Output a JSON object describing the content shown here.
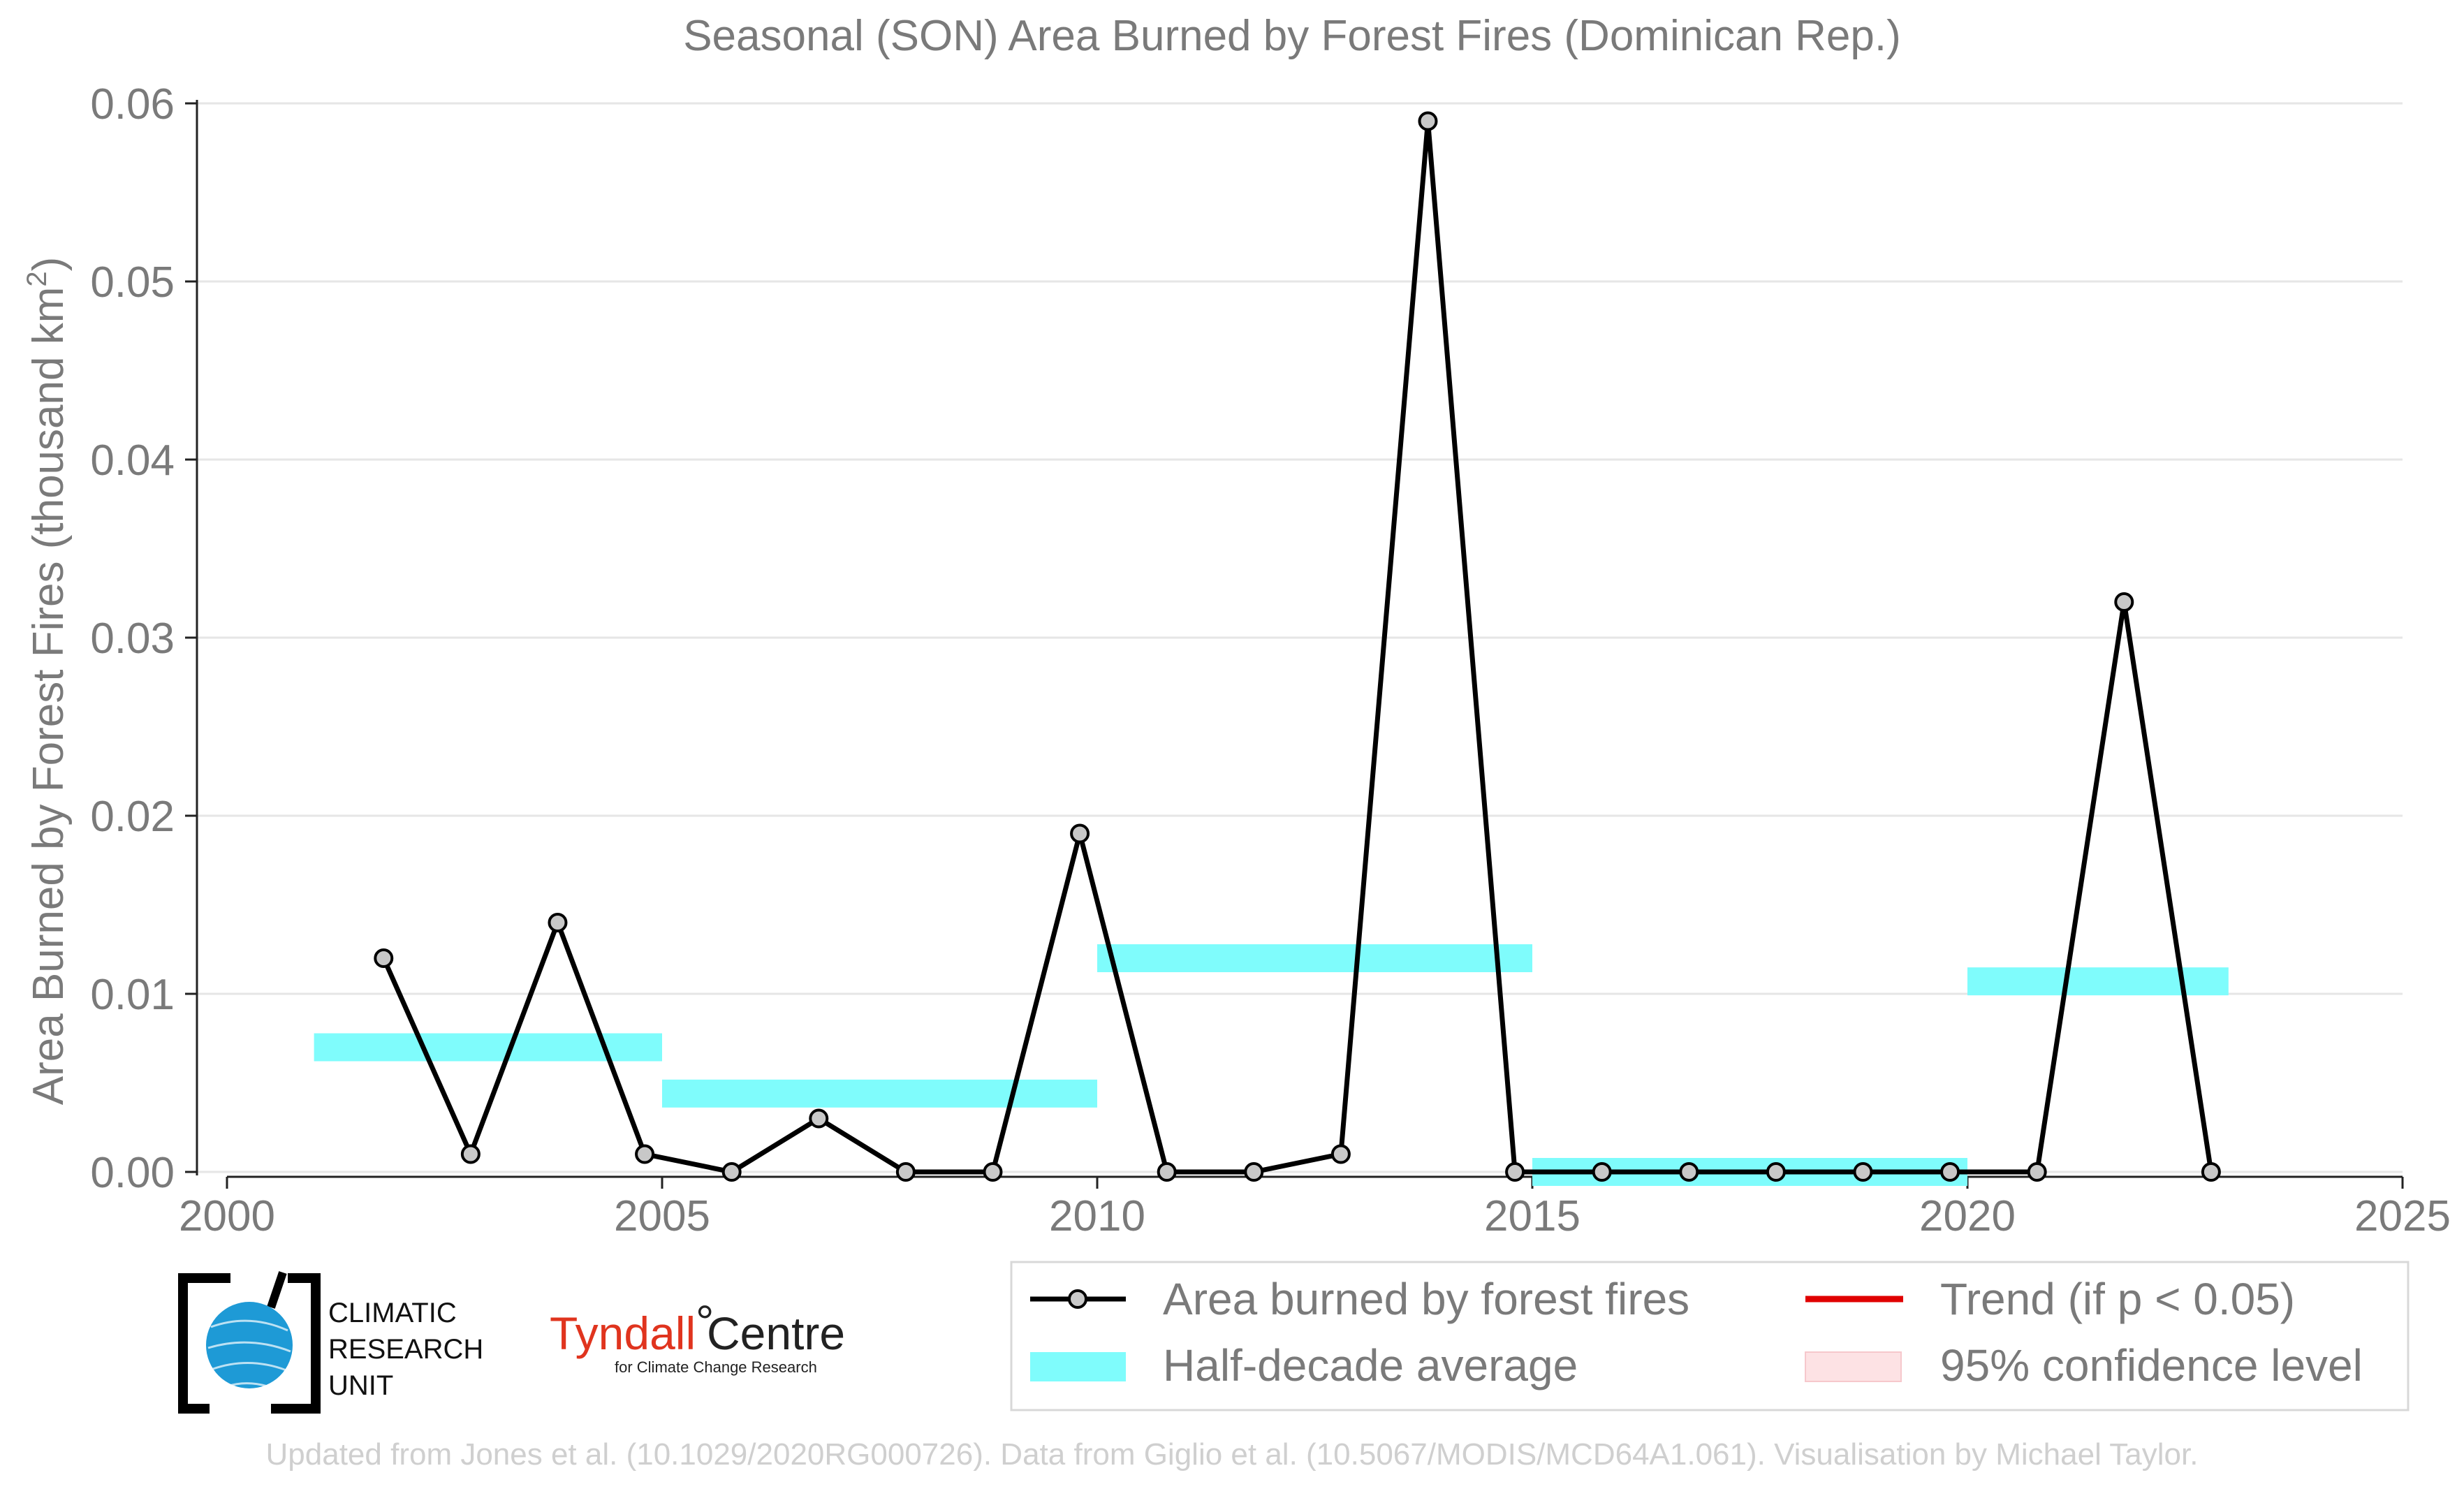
{
  "chart_data": {
    "type": "line",
    "title": "Seasonal (SON) Area Burned by Forest Fires (Dominican Rep.)",
    "ylabel": "Area Burned by Forest Fires (thousand km",
    "ylabel_sup": "2",
    "ylabel_close": ")",
    "xlim": [
      2000,
      2025
    ],
    "ylim": [
      -0.0048,
      0.061
    ],
    "xticks": [
      2000,
      2005,
      2010,
      2015,
      2020,
      2025
    ],
    "xtick_labels": [
      "2000",
      "2005",
      "2010",
      "2015",
      "2020",
      "2025"
    ],
    "yticks": [
      0.0,
      0.01,
      0.02,
      0.03,
      0.04,
      0.05,
      0.06
    ],
    "ytick_labels": [
      "0.00",
      "0.01",
      "0.02",
      "0.03",
      "0.04",
      "0.05",
      "0.06"
    ],
    "grid": true,
    "series": [
      {
        "name": "Area burned by forest fires",
        "color": "#000000",
        "marker_fill": "#c8c8c8",
        "x": [
          2001.8,
          2002.8,
          2003.8,
          2004.8,
          2005.8,
          2006.8,
          2007.8,
          2008.8,
          2009.8,
          2010.8,
          2011.8,
          2012.8,
          2013.8,
          2014.8,
          2015.8,
          2016.8,
          2017.8,
          2018.8,
          2019.8,
          2020.8,
          2021.8,
          2022.8
        ],
        "y": [
          0.012,
          0.001,
          0.014,
          0.001,
          0.0,
          0.003,
          0.0,
          0.0,
          0.019,
          0.0,
          0.0,
          0.001,
          0.059,
          0.0,
          0.0,
          0.0,
          0.0,
          0.0,
          0.0,
          0.0,
          0.032,
          0.0
        ]
      }
    ],
    "half_decade_average": {
      "name": "Half-decade average",
      "color": "#7ffcfc",
      "segments": [
        {
          "x0": 2001.0,
          "x1": 2005.0,
          "y": 0.007
        },
        {
          "x0": 2005.0,
          "x1": 2010.0,
          "y": 0.0044
        },
        {
          "x0": 2010.0,
          "x1": 2015.0,
          "y": 0.012
        },
        {
          "x0": 2015.0,
          "x1": 2020.0,
          "y": 0.0
        },
        {
          "x0": 2020.0,
          "x1": 2023.0,
          "y": 0.0107
        }
      ]
    },
    "legend": {
      "placement": "bottom-right",
      "entries": [
        {
          "label": "Area burned by forest fires",
          "kind": "line-marker",
          "color": "#000000"
        },
        {
          "label": "Trend (if p < 0.05)",
          "kind": "line",
          "color": "#e00000"
        },
        {
          "label": "Half-decade average",
          "kind": "patch",
          "color": "#7ffcfc"
        },
        {
          "label": "95% confidence level",
          "kind": "patch",
          "color": "#fde2e4"
        }
      ]
    }
  },
  "logos": {
    "cru_line1": "CLIMATIC",
    "cru_line2": "RESEARCH",
    "cru_line3": "UNIT",
    "tyndall_main": "Tyndall",
    "tyndall_degree": "°",
    "tyndall_centre": "Centre",
    "tyndall_sub": "for Climate Change Research"
  },
  "credit": "Updated from Jones et al. (10.1029/2020RG000726). Data from Giglio et al. (10.5067/MODIS/MCD64A1.061). Visualisation by Michael Taylor."
}
